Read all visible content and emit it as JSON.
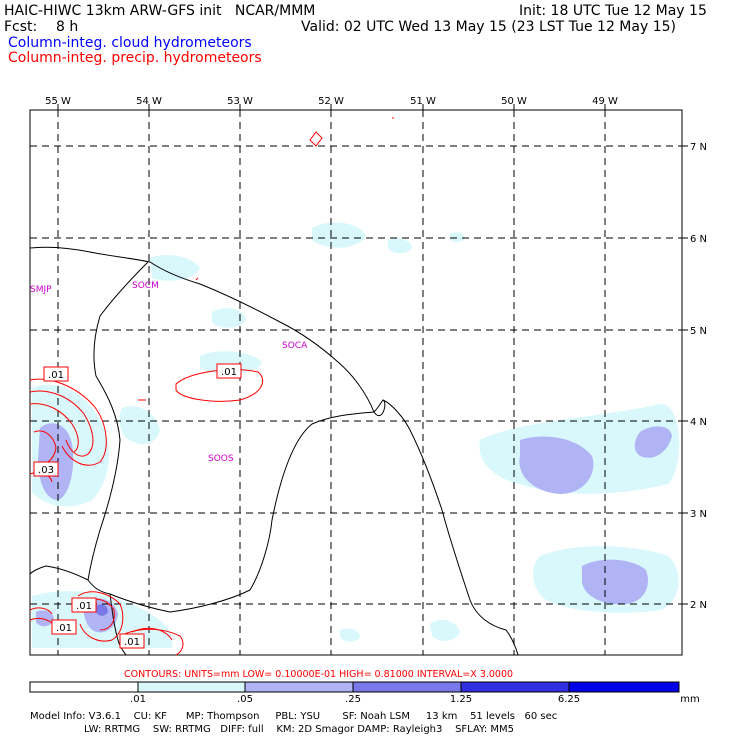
{
  "header": {
    "model": "HAIC-HIWC 13km ARW-GFS init   NCAR/MMM",
    "init": "Init: 18 UTC Tue 12 May 15",
    "fcst_label": "Fcst:",
    "fcst_value": "8 h",
    "valid": "Valid: 02 UTC Wed 13 May 15 (23 LST Tue 12 May 15)",
    "field1": "Column-integ. cloud hydrometeors",
    "field2": "Column-integ. precip. hydrometeors",
    "field1_color": "#0000ff",
    "field2_color": "#ff0000"
  },
  "map": {
    "lon_labels": [
      "55 W",
      "54 W",
      "53 W",
      "52 W",
      "51 W",
      "50 W",
      "49 W"
    ],
    "lat_labels": [
      "7 N",
      "6 N",
      "5 N",
      "4 N",
      "3 N",
      "2 N"
    ],
    "stations": [
      "SMJP",
      "SOCM",
      "SOCA",
      "SOOS"
    ],
    "station_color": "#cc00cc",
    "contour_labels": [
      ".01",
      ".01",
      ".03",
      ".01",
      ".01",
      ".01"
    ],
    "contour_color": "#ff0000"
  },
  "contours_info": "CONTOURS:  UNITS=mm  LOW= 0.10000E-01  HIGH= 0.81000     INTERVAL=X  3.0000",
  "colorbar": {
    "labels": [
      ".01",
      ".05",
      ".25",
      "1.25",
      "6.25",
      "mm"
    ],
    "colors": [
      "#ffffff",
      "#d8f8fc",
      "#b0b4f4",
      "#7878e8",
      "#3030e0",
      "#0000e8"
    ]
  },
  "footer": {
    "line1": "Model Info: V3.6.1    CU: KF      MP: Thompson     PBL: YSU       SF: Noah LSM     13 km    51 levels   60 sec",
    "line2": "LW: RRTMG    SW: RRTMG   DIFF: full    KM: 2D Smagor DAMP: Rayleigh3    SFLAY: MM5"
  }
}
